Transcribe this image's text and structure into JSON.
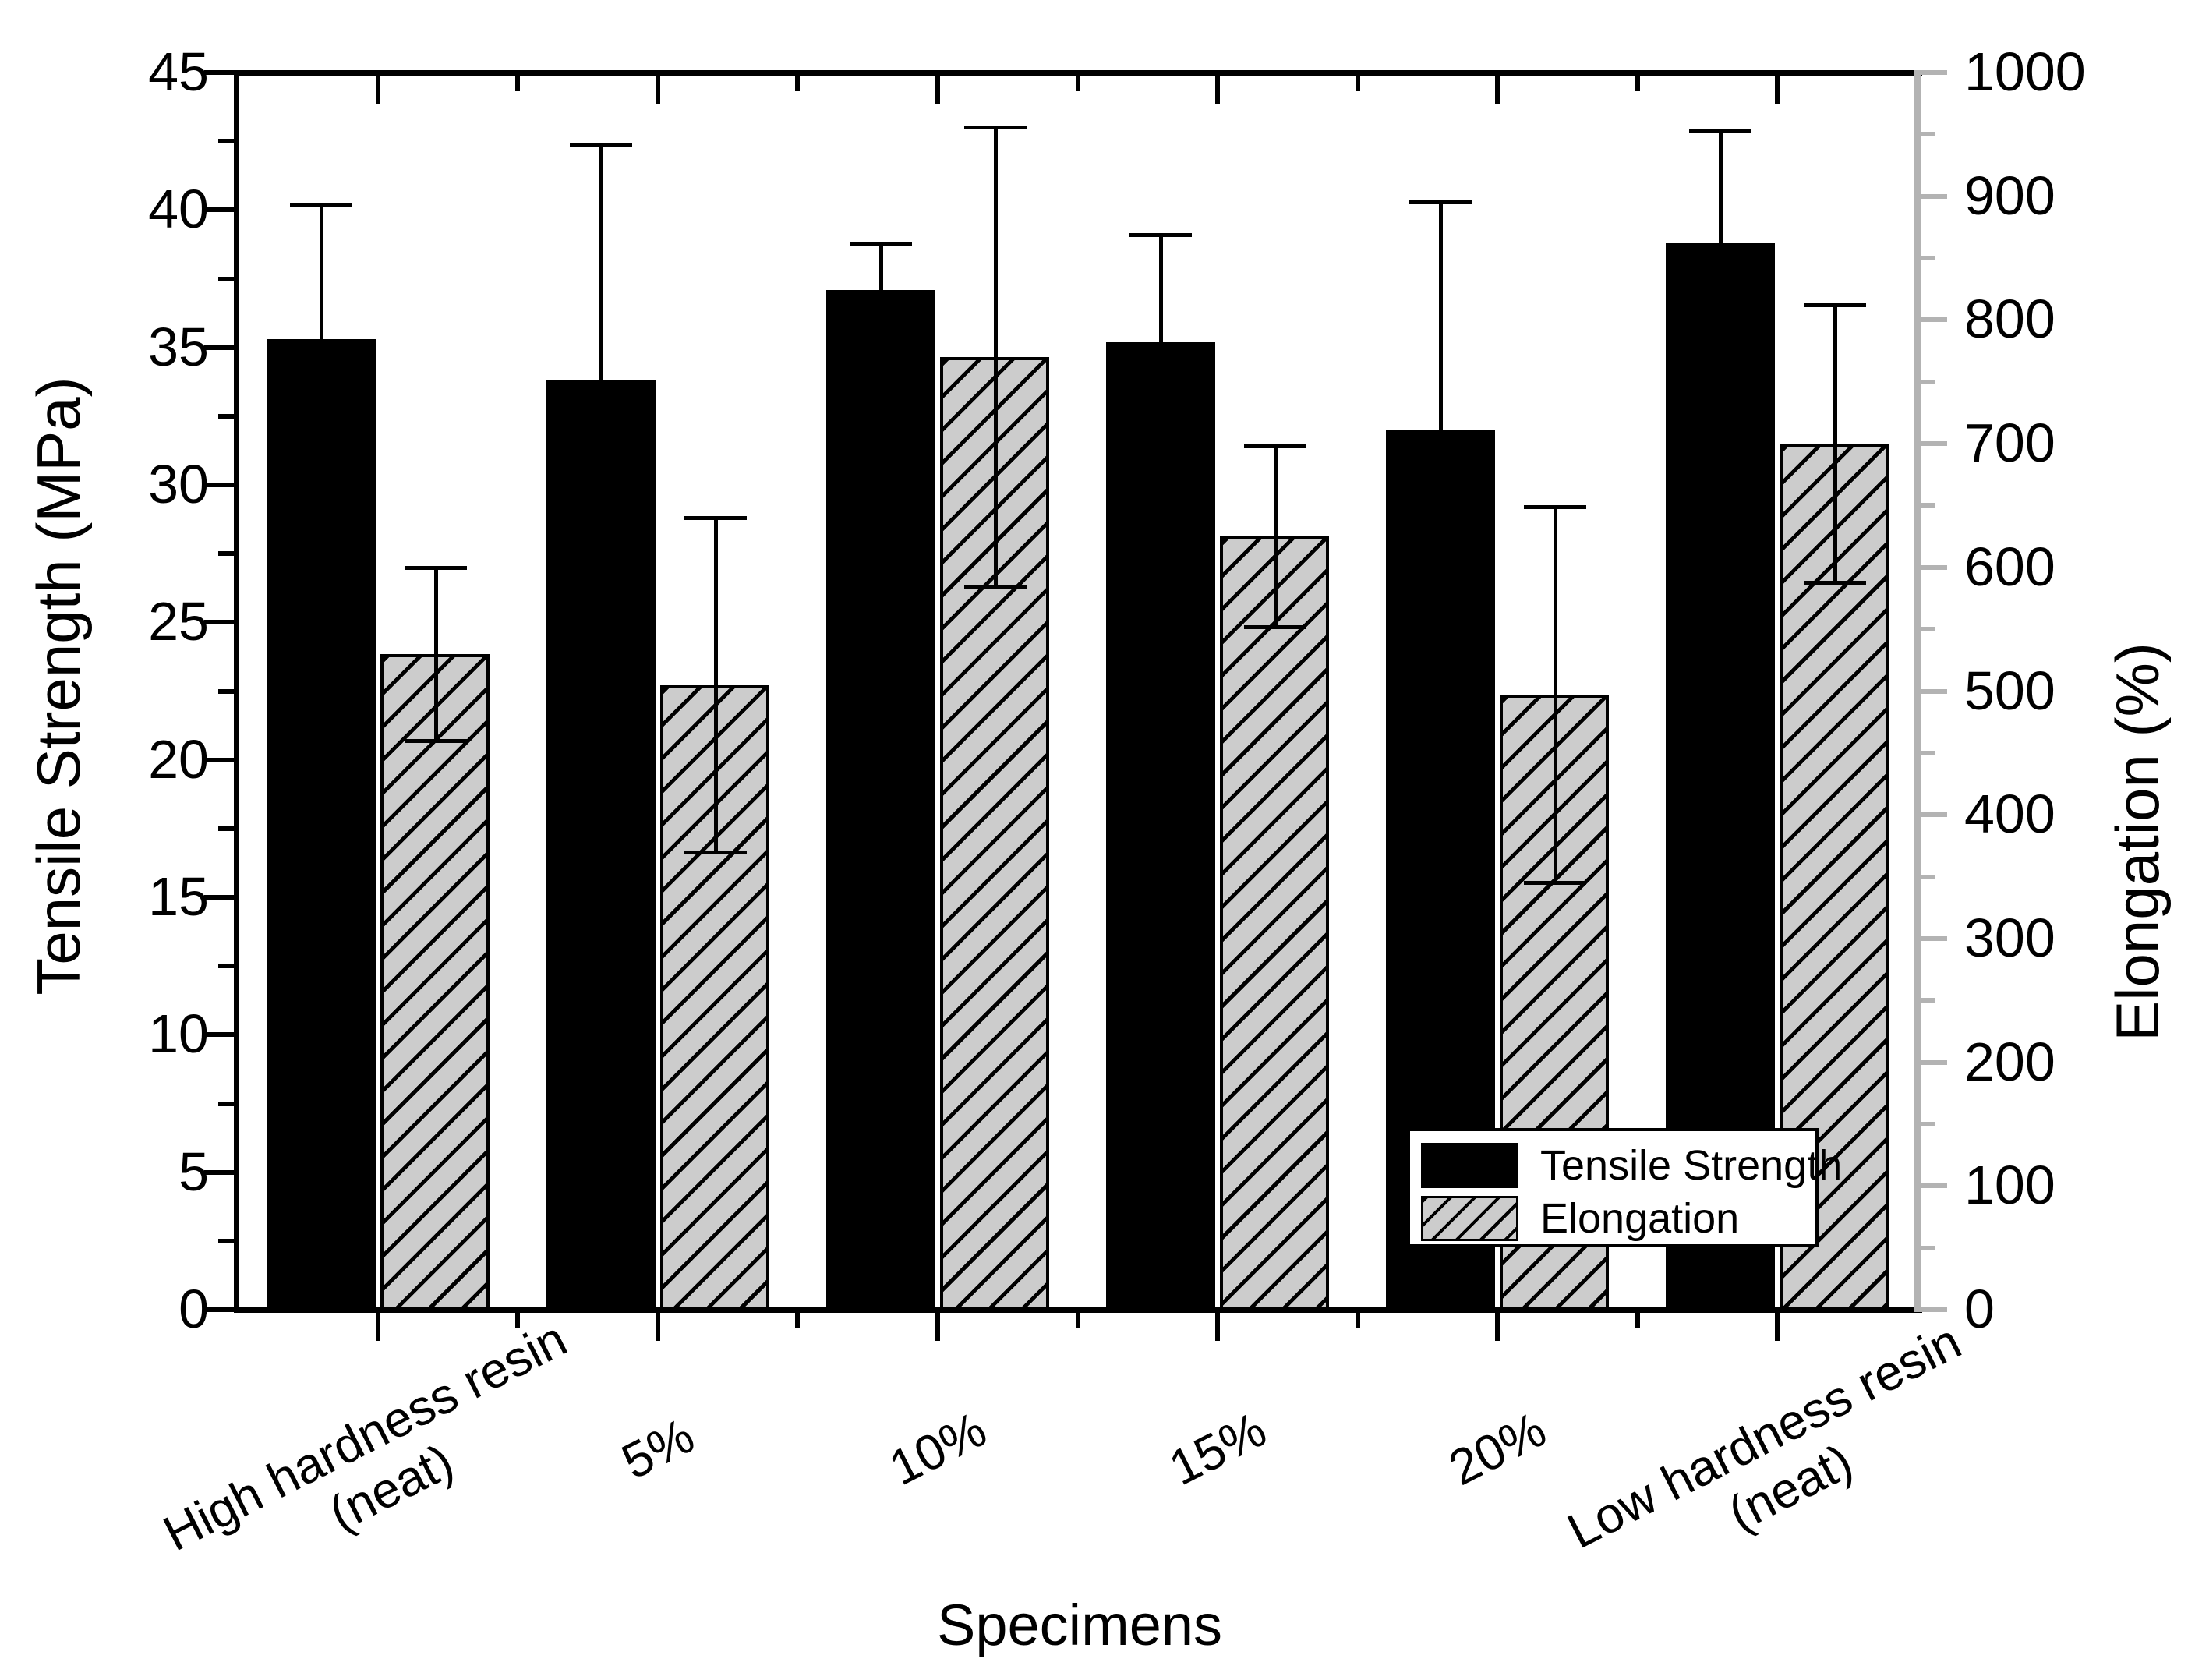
{
  "chart_data": {
    "type": "bar",
    "title": "",
    "categories": [
      {
        "lines": [
          "High hardness resin",
          "(neat)"
        ]
      },
      {
        "lines": [
          "5%"
        ]
      },
      {
        "lines": [
          "10%"
        ]
      },
      {
        "lines": [
          "15%"
        ]
      },
      {
        "lines": [
          "20%"
        ]
      },
      {
        "lines": [
          "Low hardness resin",
          "(neat)"
        ]
      }
    ],
    "series": [
      {
        "name": "Tensile Strength",
        "axis": "left",
        "style": "solid-black",
        "values": [
          35.3,
          33.8,
          37.1,
          35.2,
          32.0,
          38.8
        ],
        "err_up": [
          4.9,
          8.6,
          1.7,
          3.9,
          8.3,
          4.1
        ],
        "color": "#000000"
      },
      {
        "name": "Elongation",
        "axis": "right",
        "style": "gray-hatched",
        "values": [
          530,
          505,
          770,
          625,
          497,
          700
        ],
        "err": [
          70,
          135,
          186,
          73,
          152,
          112
        ],
        "fill": "#cccccc",
        "hatch_color": "#000000"
      }
    ],
    "left_axis": {
      "label": "Tensile Strength (MPa)",
      "min": 0,
      "max": 45,
      "major_step": 5,
      "minor_step": 2.5,
      "tick_labels": [
        "0",
        "5",
        "10",
        "15",
        "20",
        "25",
        "30",
        "35",
        "40",
        "45"
      ],
      "color": "#000000"
    },
    "right_axis": {
      "label": "Elongation (%)",
      "min": 0,
      "max": 1000,
      "major_step": 100,
      "minor_step": 50,
      "tick_labels": [
        "0",
        "100",
        "200",
        "300",
        "400",
        "500",
        "600",
        "700",
        "800",
        "900",
        "1000"
      ],
      "color": "#b3b3b3"
    },
    "x_axis": {
      "label": "Specimens",
      "tick_position": "category-centers"
    },
    "legend": {
      "position": "bottom-right",
      "items": [
        "Tensile Strength",
        "Elongation"
      ]
    },
    "grid": false
  }
}
